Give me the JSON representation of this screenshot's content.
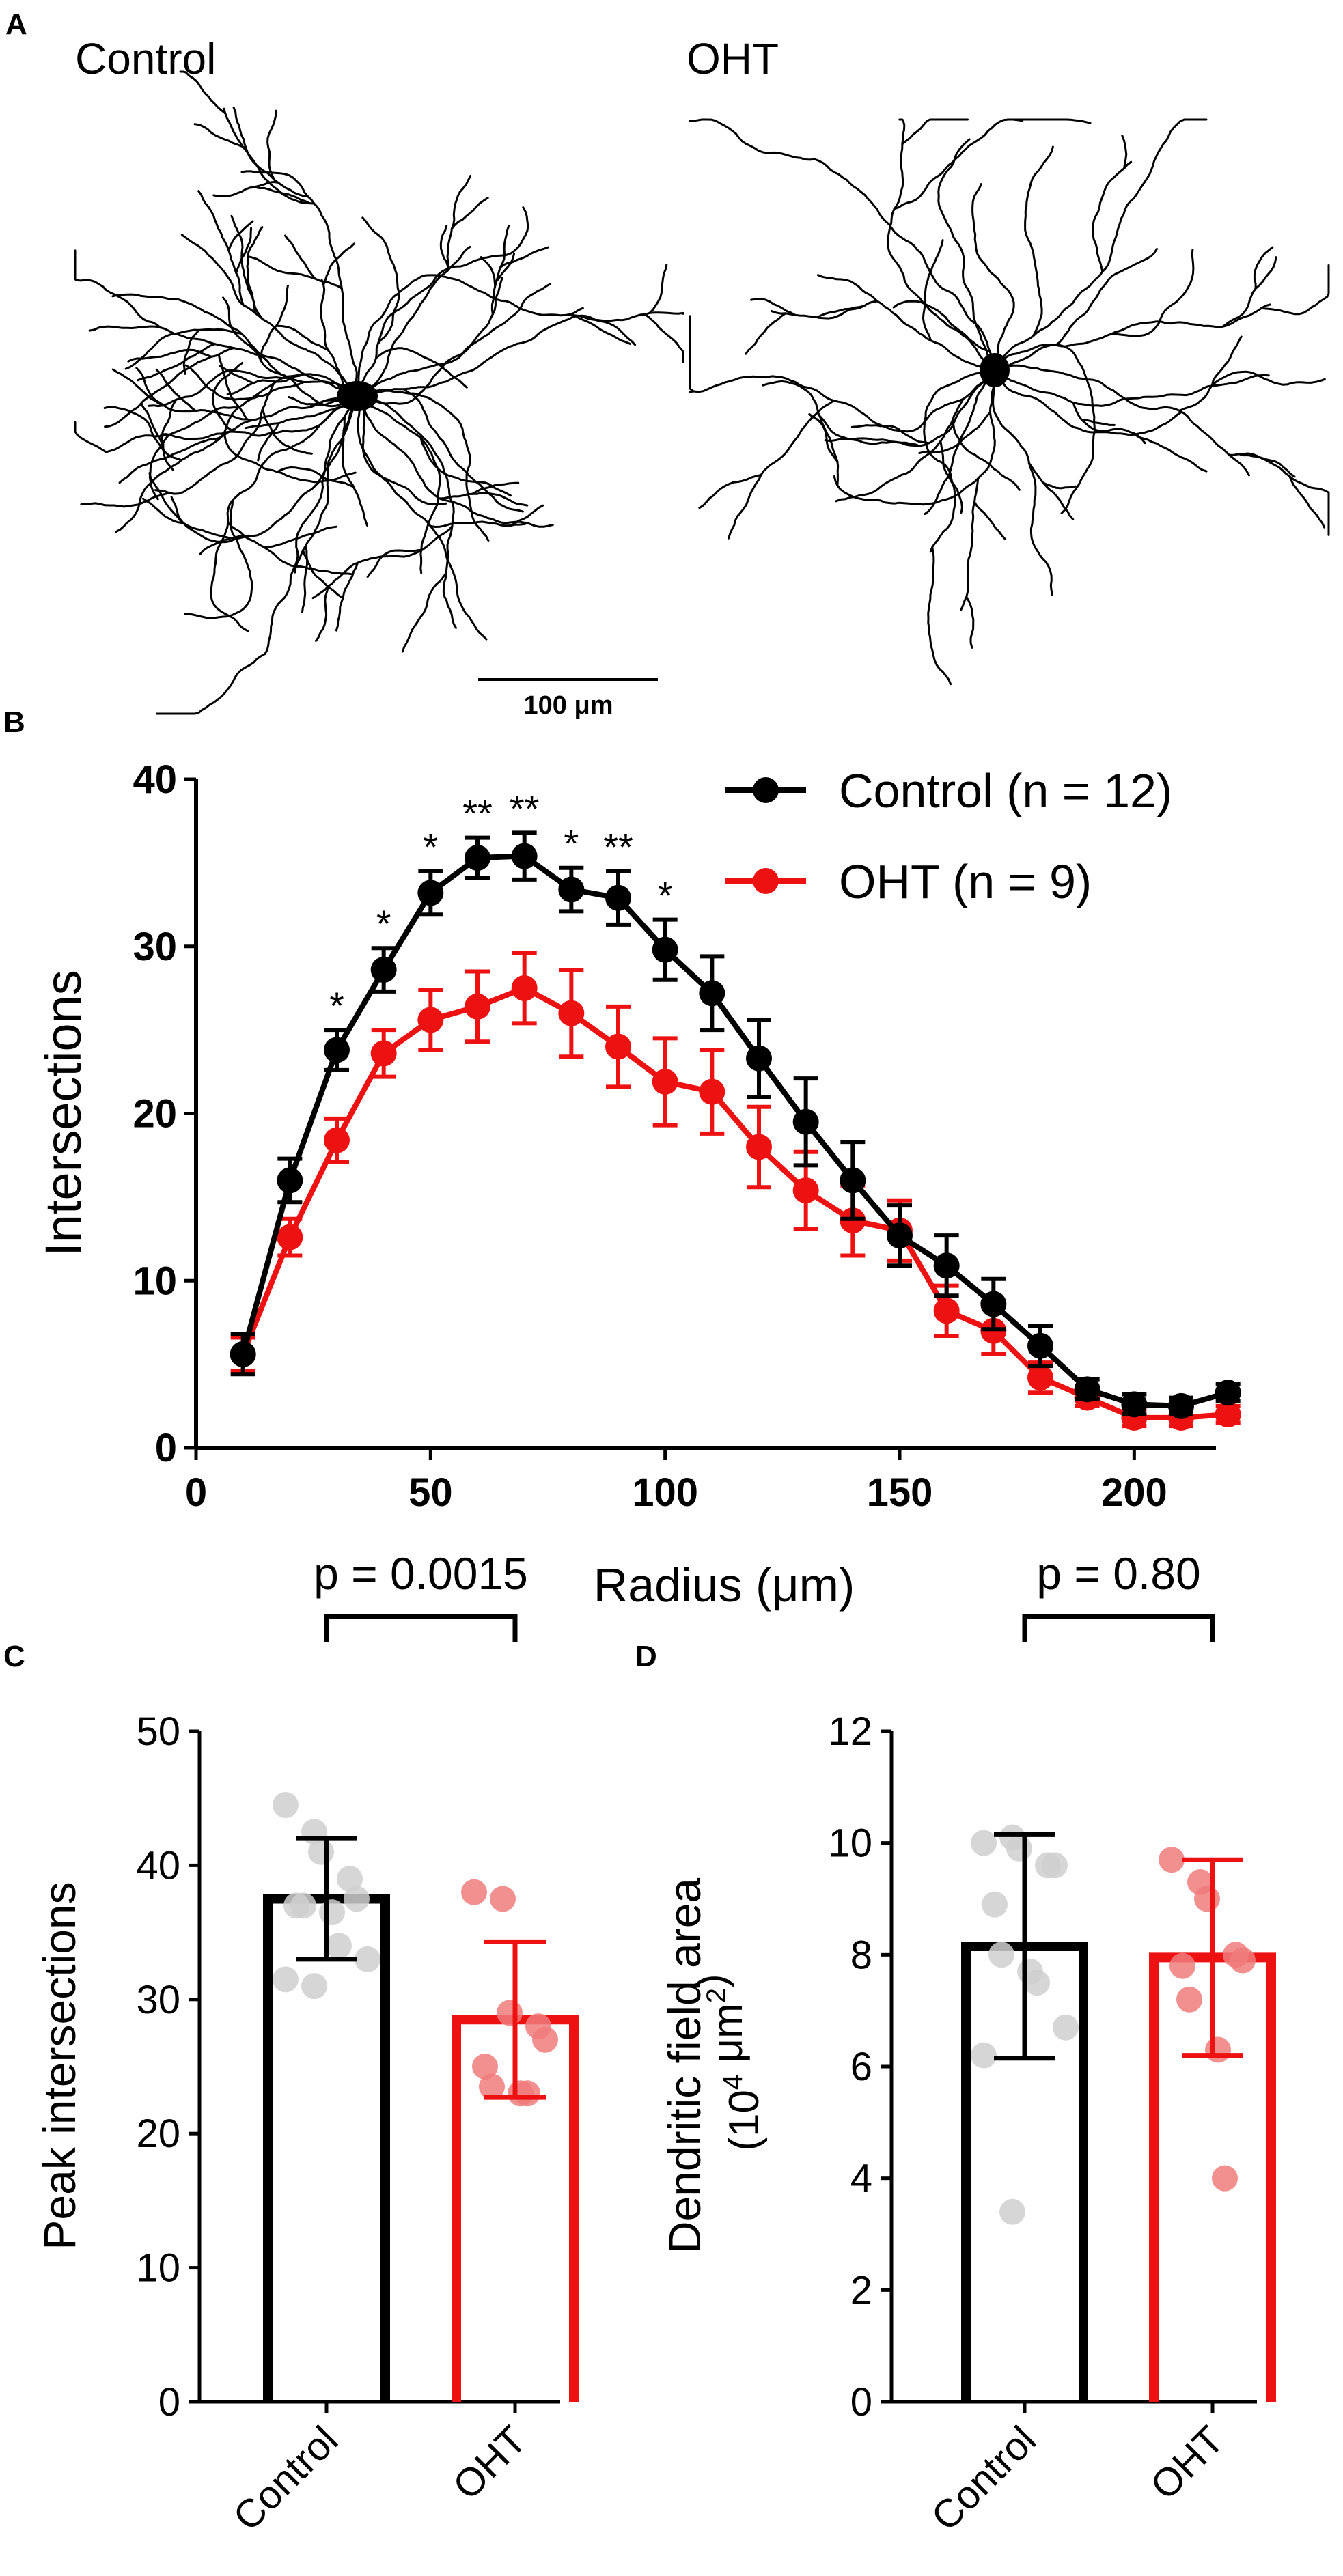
{
  "panels": {
    "A": {
      "letter": "A",
      "label_left": "Control",
      "label_right": "OHT",
      "scalebar_label": "100 μm"
    },
    "B": {
      "letter": "B"
    },
    "C": {
      "letter": "C"
    },
    "D": {
      "letter": "D"
    }
  },
  "colors": {
    "control": "#000000",
    "oht": "#ee1111",
    "oht_points": "#f07b7b",
    "control_points": "#cfcfcf"
  },
  "chart_data": [
    {
      "id": "B",
      "type": "line",
      "title": "",
      "xlabel": "Radius (μm)",
      "ylabel": "Intersections",
      "xlim": [
        0,
        225
      ],
      "ylim": [
        0,
        40
      ],
      "xticks": [
        "0",
        "50",
        "100",
        "150",
        "200"
      ],
      "yticks": [
        "0",
        "10",
        "20",
        "30",
        "40"
      ],
      "legend_position": "top-right",
      "x": [
        10,
        20,
        30,
        40,
        50,
        60,
        70,
        80,
        90,
        100,
        110,
        120,
        130,
        140,
        150,
        160,
        170,
        180,
        190,
        200,
        210,
        220
      ],
      "series": [
        {
          "name": "Control (n = 12)",
          "color": "#000000",
          "values": [
            5.6,
            16.0,
            23.8,
            28.6,
            33.2,
            35.3,
            35.4,
            33.4,
            32.9,
            29.8,
            27.2,
            23.3,
            19.5,
            16.0,
            12.7,
            10.9,
            8.6,
            6.1,
            3.5,
            2.6,
            2.5,
            3.3
          ],
          "errors": [
            1.2,
            1.3,
            1.2,
            1.3,
            1.3,
            1.2,
            1.4,
            1.3,
            1.6,
            1.8,
            2.2,
            2.3,
            2.6,
            2.3,
            1.8,
            1.8,
            1.5,
            1.2,
            0.6,
            0.6,
            0.5,
            0.5
          ]
        },
        {
          "name": "OHT (n = 9)",
          "color": "#ee1111",
          "values": [
            5.6,
            12.6,
            18.4,
            23.6,
            25.6,
            26.4,
            27.5,
            26.0,
            24.0,
            21.9,
            21.3,
            18.0,
            15.4,
            13.6,
            13.0,
            8.2,
            7.0,
            4.2,
            3.0,
            1.8,
            1.8,
            2.0
          ],
          "errors": [
            1.0,
            1.1,
            1.3,
            1.4,
            1.8,
            2.1,
            2.1,
            2.6,
            2.4,
            2.6,
            2.5,
            2.4,
            2.3,
            2.1,
            1.8,
            1.5,
            1.4,
            0.9,
            0.5,
            0.5,
            0.5,
            0.5
          ]
        }
      ],
      "annotations": [
        {
          "x": 30,
          "text": "*"
        },
        {
          "x": 40,
          "text": "*"
        },
        {
          "x": 50,
          "text": "*"
        },
        {
          "x": 60,
          "text": "**"
        },
        {
          "x": 70,
          "text": "**"
        },
        {
          "x": 80,
          "text": "*"
        },
        {
          "x": 90,
          "text": "**"
        },
        {
          "x": 100,
          "text": "*"
        }
      ]
    },
    {
      "id": "C",
      "type": "bar",
      "title": "p = 0.0015",
      "xlabel": "",
      "ylabel": "Peak intersections",
      "ylim": [
        0,
        50
      ],
      "yticks": [
        "0",
        "10",
        "20",
        "30",
        "40",
        "50"
      ],
      "categories": [
        "Control",
        "OHT"
      ],
      "values": [
        37.5,
        28.5
      ],
      "errors": [
        4.5,
        5.8
      ],
      "colors": [
        "#000000",
        "#ee1111"
      ],
      "points": [
        [
          44.5,
          42.5,
          41.0,
          39.0,
          37.5,
          37.0,
          37.0,
          36.5,
          34.0,
          33.0,
          31.5,
          31.0
        ],
        [
          38.0,
          37.5,
          29.0,
          28.0,
          27.0,
          25.0,
          23.5,
          23.0,
          23.0
        ]
      ]
    },
    {
      "id": "D",
      "type": "bar",
      "title": "p = 0.80",
      "xlabel": "",
      "ylabel": "Dendritic field area",
      "ylabel2_base": "(10",
      "ylabel2_exp": "4",
      "ylabel2_unit": " μm",
      "ylabel2_exp2": "2",
      "ylabel2_end": ")",
      "ylim": [
        0,
        12
      ],
      "yticks": [
        "0",
        "2",
        "4",
        "6",
        "8",
        "10",
        "12"
      ],
      "categories": [
        "Control",
        "OHT"
      ],
      "values": [
        8.15,
        7.95
      ],
      "errors": [
        2.0,
        1.75
      ],
      "colors": [
        "#000000",
        "#ee1111"
      ],
      "points": [
        [
          10.0,
          10.1,
          9.9,
          9.6,
          9.6,
          8.9,
          8.0,
          7.7,
          7.5,
          6.7,
          6.2,
          3.4
        ],
        [
          9.7,
          9.3,
          9.0,
          8.0,
          7.9,
          7.8,
          7.2,
          6.3,
          4.0
        ]
      ]
    }
  ]
}
